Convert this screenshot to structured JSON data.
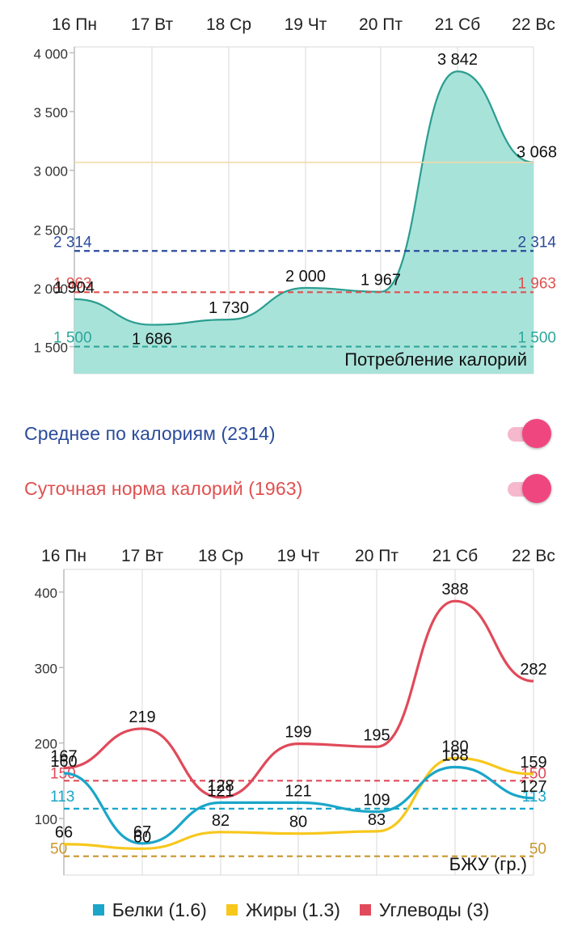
{
  "colors": {
    "calories_fill": "#a8e3da",
    "calories_line": "#2a9d8f",
    "average": "#2a4b9b",
    "norm": "#e05050",
    "min": "#2ba79a",
    "protein": "#1aa6c8",
    "fat": "#f7c71c",
    "carbs": "#e04a5a",
    "fat_norm": "#c9962e",
    "toggle_thumb": "#f0467f",
    "toggle_track": "#f6b8cc"
  },
  "toggles": {
    "average": {
      "label": "Среднее по калориям (2314)",
      "on": true
    },
    "norm": {
      "label": "Суточная норма калорий (1963)",
      "on": true
    }
  },
  "legend": {
    "protein": "Белки (1.6)",
    "fat": "Жиры (1.3)",
    "carbs": "Углеводы (3)"
  },
  "chart_data": [
    {
      "type": "area",
      "categories": [
        "16 Пн",
        "17 Вт",
        "18 Ср",
        "19 Чт",
        "20 Пт",
        "21 Сб",
        "22 Вс"
      ],
      "series": [
        {
          "values": [
            1904,
            1686,
            1730,
            2000,
            1967,
            3842,
            3068
          ],
          "labels": [
            "1 904",
            "1 686",
            "1 730",
            "2 000",
            "1 967",
            "3 842",
            "3 068"
          ]
        }
      ],
      "annotation": "Потребление калорий",
      "ylim": [
        1270,
        4050
      ],
      "yticks": [
        1500,
        2000,
        2500,
        3000,
        3500,
        4000
      ],
      "ytick_labels": [
        "1 500",
        "2 000",
        "2 500",
        "3 000",
        "3 500",
        "4 000"
      ],
      "reference_lines": [
        {
          "value": 2314,
          "label": "2 314",
          "style": "dashed",
          "role": "average"
        },
        {
          "value": 1963,
          "label": "1 963",
          "style": "dashed",
          "role": "norm"
        },
        {
          "value": 1500,
          "label": "1 500",
          "style": "dashed",
          "role": "min"
        },
        {
          "value": 3068,
          "label": "",
          "style": "solid",
          "role": "last"
        }
      ],
      "grid": true
    },
    {
      "type": "line",
      "categories": [
        "16 Пн",
        "17 Вт",
        "18 Ср",
        "19 Чт",
        "20 Пт",
        "21 Сб",
        "22 Вс"
      ],
      "series": [
        {
          "name": "Белки (1.6)",
          "role": "protein",
          "values": [
            160,
            67,
            121,
            121,
            109,
            168,
            127
          ]
        },
        {
          "name": "Жиры (1.3)",
          "role": "fat",
          "values": [
            66,
            60,
            82,
            80,
            83,
            180,
            159
          ]
        },
        {
          "name": "Углеводы (3)",
          "role": "carbs",
          "values": [
            167,
            219,
            128,
            199,
            195,
            388,
            282
          ]
        }
      ],
      "annotation": "БЖУ (гр.)",
      "ylim": [
        25,
        430
      ],
      "yticks": [
        100,
        200,
        300,
        400
      ],
      "ytick_labels": [
        "100",
        "200",
        "300",
        "400"
      ],
      "reference_lines": [
        {
          "value": 150,
          "label": "150",
          "style": "dashed",
          "role": "carbs"
        },
        {
          "value": 113,
          "label": "113",
          "style": "dashed",
          "role": "protein"
        },
        {
          "value": 50,
          "label": "50",
          "style": "dashed",
          "role": "fat_norm"
        }
      ],
      "grid": true
    }
  ]
}
